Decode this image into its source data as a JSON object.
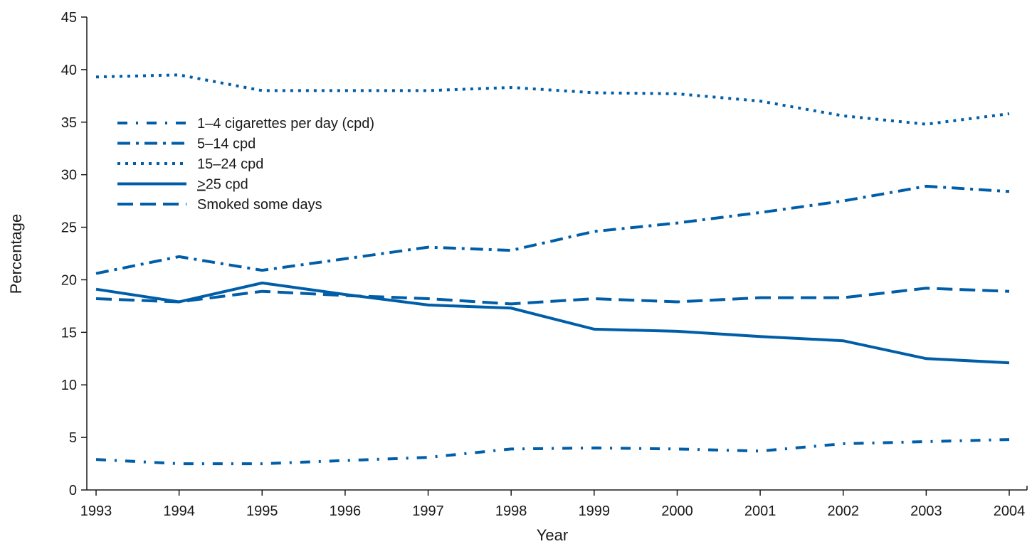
{
  "chart_data": {
    "type": "line",
    "title": "",
    "xlabel": "Year",
    "ylabel": "Percentage",
    "x": [
      "1993",
      "1994",
      "1995",
      "1996",
      "1997",
      "1998",
      "1999",
      "2000",
      "2001",
      "2002",
      "2003",
      "2004"
    ],
    "ylim": [
      0,
      45
    ],
    "yticks": [
      "0",
      "5",
      "10",
      "15",
      "20",
      "25",
      "30",
      "35",
      "40",
      "45"
    ],
    "grid": false,
    "legend_position": "upper-left",
    "line_color": "#005ea8",
    "series": [
      {
        "name": "1–4 cigarettes per day (cpd)",
        "legend_name": "1–4 cigarettes per day (cpd)",
        "style": "dash-dot-sparse",
        "values": [
          2.9,
          2.5,
          2.5,
          2.8,
          3.1,
          3.9,
          4.0,
          3.9,
          3.7,
          4.4,
          4.6,
          4.8
        ]
      },
      {
        "name": "5–14 cpd",
        "legend_name": "5–14 cpd",
        "style": "dash-dot",
        "values": [
          20.6,
          22.2,
          20.9,
          22.0,
          23.1,
          22.8,
          24.6,
          25.4,
          26.4,
          27.5,
          28.9,
          28.4
        ]
      },
      {
        "name": "15–24 cpd",
        "legend_name": "15–24 cpd",
        "style": "dotted",
        "values": [
          39.3,
          39.5,
          38.0,
          38.0,
          38.0,
          38.3,
          37.8,
          37.7,
          37.0,
          35.6,
          34.8,
          35.8
        ]
      },
      {
        "name": ">25 cpd",
        "legend_prefix": ">",
        "legend_name": "25 cpd",
        "style": "solid",
        "values": [
          19.1,
          17.9,
          19.7,
          18.6,
          17.6,
          17.3,
          15.3,
          15.1,
          14.6,
          14.2,
          12.5,
          12.1
        ]
      },
      {
        "name": "Smoked some days",
        "legend_name": "Smoked some days",
        "style": "dashed",
        "values": [
          18.2,
          17.9,
          18.9,
          18.5,
          18.2,
          17.7,
          18.2,
          17.9,
          18.3,
          18.3,
          19.2,
          18.9
        ]
      }
    ]
  }
}
